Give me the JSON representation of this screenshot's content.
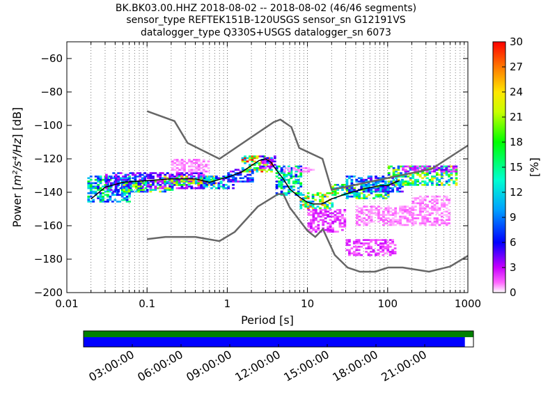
{
  "chart_data": {
    "type": "heatmap",
    "title_lines": [
      "BK.BK03.00.HHZ   2018-08-02 -- 2018-08-02  (46/46 segments)",
      "sensor_type REFTEK151B-120USGS sensor_sn G12191VS",
      "datalogger_type Q330S+USGS datalogger_sn 6073"
    ],
    "xlabel": "Period [s]",
    "ylabel": "Power [m²/s⁴/Hz] [dB]",
    "ylabel_parts": {
      "pre": "Power [",
      "unit": "m²/s⁴/Hz",
      "post": "] [dB]"
    },
    "xscale": "log",
    "xlim": [
      0.01,
      1000
    ],
    "ylim": [
      -200,
      -50
    ],
    "xticks": [
      0.01,
      0.1,
      1,
      10,
      100,
      1000
    ],
    "xtick_labels": [
      "0.01",
      "0.1",
      "1",
      "10",
      "100",
      "1000"
    ],
    "yticks": [
      -60,
      -80,
      -100,
      -120,
      -140,
      -160,
      -180,
      -200
    ],
    "ytick_labels": [
      "−60",
      "−80",
      "−100",
      "−120",
      "−140",
      "−160",
      "−180",
      "−200"
    ],
    "grid": "dotted vertical lines",
    "colorbar": {
      "label": "[%]",
      "min": 0,
      "max": 30,
      "ticks": [
        0,
        3,
        6,
        9,
        12,
        15,
        18,
        21,
        24,
        27,
        30
      ],
      "tick_labels": [
        "0",
        "3",
        "6",
        "9",
        "12",
        "15",
        "18",
        "21",
        "24",
        "27",
        "30"
      ]
    },
    "mode_line": [
      [
        0.02,
        -144
      ],
      [
        0.03,
        -137
      ],
      [
        0.05,
        -134
      ],
      [
        0.1,
        -133
      ],
      [
        0.2,
        -132
      ],
      [
        0.4,
        -132
      ],
      [
        0.6,
        -134
      ],
      [
        1,
        -131
      ],
      [
        1.5,
        -128
      ],
      [
        2,
        -124
      ],
      [
        2.5,
        -121
      ],
      [
        3,
        -120
      ],
      [
        3.5,
        -122
      ],
      [
        4,
        -126
      ],
      [
        5,
        -132
      ],
      [
        6,
        -138
      ],
      [
        8,
        -143
      ],
      [
        10,
        -146
      ],
      [
        12,
        -147
      ],
      [
        15,
        -147
      ],
      [
        20,
        -144
      ],
      [
        30,
        -141
      ],
      [
        50,
        -138
      ],
      [
        80,
        -136
      ],
      [
        100,
        -136
      ],
      [
        140,
        -133
      ]
    ],
    "density": [
      {
        "x": [
          0.018,
          0.06
        ],
        "y": [
          -146,
          -130
        ],
        "pct": 12
      },
      {
        "x": [
          0.03,
          0.1
        ],
        "y": [
          -140,
          -128
        ],
        "pct": 6
      },
      {
        "x": [
          0.05,
          0.2
        ],
        "y": [
          -140,
          -133
        ],
        "pct": 15
      },
      {
        "x": [
          0.1,
          0.5
        ],
        "y": [
          -138,
          -128
        ],
        "pct": 4
      },
      {
        "x": [
          0.15,
          0.7
        ],
        "y": [
          -136,
          -130
        ],
        "pct": 18
      },
      {
        "x": [
          0.2,
          0.6
        ],
        "y": [
          -128,
          -120
        ],
        "pct": 1
      },
      {
        "x": [
          0.5,
          1.2
        ],
        "y": [
          -138,
          -130
        ],
        "pct": 10
      },
      {
        "x": [
          1,
          2
        ],
        "y": [
          -134,
          -126
        ],
        "pct": 6
      },
      {
        "x": [
          1.5,
          3.5
        ],
        "y": [
          -128,
          -118
        ],
        "pct": 20
      },
      {
        "x": [
          2.5,
          4
        ],
        "y": [
          -126,
          -118
        ],
        "pct": 4
      },
      {
        "x": [
          4,
          8
        ],
        "y": [
          -142,
          -124
        ],
        "pct": 12
      },
      {
        "x": [
          5,
          12
        ],
        "y": [
          -128,
          -125
        ],
        "pct": 1
      },
      {
        "x": [
          8,
          20
        ],
        "y": [
          -150,
          -140
        ],
        "pct": 18
      },
      {
        "x": [
          10,
          30
        ],
        "y": [
          -164,
          -150
        ],
        "pct": 2
      },
      {
        "x": [
          20,
          100
        ],
        "y": [
          -144,
          -135
        ],
        "pct": 15
      },
      {
        "x": [
          30,
          150
        ],
        "y": [
          -140,
          -130
        ],
        "pct": 8
      },
      {
        "x": [
          100,
          700
        ],
        "y": [
          -136,
          -124
        ],
        "pct": 16
      },
      {
        "x": [
          150,
          700
        ],
        "y": [
          -128,
          -124
        ],
        "pct": 3
      },
      {
        "x": [
          40,
          200
        ],
        "y": [
          -160,
          -148
        ],
        "pct": 1
      },
      {
        "x": [
          30,
          120
        ],
        "y": [
          -178,
          -168
        ],
        "pct": 2
      },
      {
        "x": [
          200,
          600
        ],
        "y": [
          -160,
          -142
        ],
        "pct": 1
      }
    ],
    "nlnm": [
      [
        0.1,
        -168
      ],
      [
        0.17,
        -166.7
      ],
      [
        0.4,
        -166.7
      ],
      [
        0.8,
        -169.2
      ],
      [
        1.24,
        -163.7
      ],
      [
        2.4,
        -148.6
      ],
      [
        4.3,
        -141.1
      ],
      [
        5,
        -141.1
      ],
      [
        6,
        -149
      ],
      [
        10,
        -163
      ],
      [
        12.5,
        -166.7
      ],
      [
        15.6,
        -162
      ],
      [
        21.9,
        -177.5
      ],
      [
        31.6,
        -185
      ],
      [
        45,
        -187.5
      ],
      [
        70,
        -187.5
      ],
      [
        101,
        -185
      ],
      [
        154,
        -185
      ],
      [
        328,
        -187.5
      ],
      [
        600,
        -184.4
      ],
      [
        1000,
        -178
      ]
    ],
    "nhnm": [
      [
        0.1,
        -91.5
      ],
      [
        0.22,
        -97.4
      ],
      [
        0.32,
        -110.5
      ],
      [
        0.8,
        -120
      ],
      [
        3.8,
        -98
      ],
      [
        4.6,
        -96.5
      ],
      [
        6.3,
        -101
      ],
      [
        7.9,
        -113.5
      ],
      [
        15.4,
        -120
      ],
      [
        20,
        -138.5
      ],
      [
        354.8,
        -126
      ],
      [
        1000,
        -112
      ]
    ],
    "availability": {
      "time_labels": [
        "03:00:00",
        "06:00:00",
        "09:00:00",
        "12:00:00",
        "15:00:00",
        "18:00:00",
        "21:00:00"
      ],
      "time_hours": [
        3,
        6,
        9,
        12,
        15,
        18,
        21
      ],
      "span_hours": 24,
      "coverage_fraction": 0.978,
      "colors": {
        "coverage": "#008000",
        "data": "#0000ff"
      }
    }
  }
}
